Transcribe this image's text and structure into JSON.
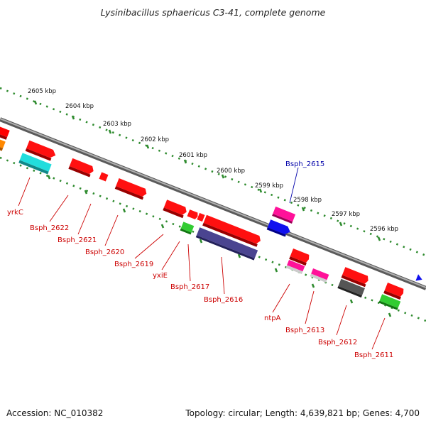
{
  "title": "Lysinibacillus sphaericus C3-41, complete genome",
  "footer": {
    "accession": "Accession: NC_010382",
    "summary": "Topology: circular; Length: 4,639,821 bp; Genes: 4,700"
  },
  "scale": {
    "unit": "kbp",
    "ticks": [
      {
        "kbp": 2605,
        "label": "2605 kbp"
      },
      {
        "kbp": 2604,
        "label": "2604 kbp"
      },
      {
        "kbp": 2603,
        "label": "2603 kbp"
      },
      {
        "kbp": 2602,
        "label": "2602 kbp"
      },
      {
        "kbp": 2601,
        "label": "2601 kbp"
      },
      {
        "kbp": 2600,
        "label": "2600 kbp"
      },
      {
        "kbp": 2599,
        "label": "2599 kbp"
      },
      {
        "kbp": 2598,
        "label": "2598 kbp"
      },
      {
        "kbp": 2597,
        "label": "2597 kbp"
      },
      {
        "kbp": 2596,
        "label": "2596 kbp"
      }
    ]
  },
  "colors": {
    "backbone": "#8a8a8a",
    "ruler": "#2e8b2e",
    "label_red": "#cc0000",
    "label_blue": "#0000aa"
  },
  "genes": [
    {
      "label": "Bsph_2615",
      "color": "#1010ee",
      "label_color": "#0000aa"
    },
    {
      "label": "yrkC",
      "color": "#ff0000",
      "label_color": "#cc0000"
    },
    {
      "label": "Bsph_2622",
      "color": "#ff0000",
      "label_color": "#cc0000"
    },
    {
      "label": "Bsph_2621",
      "color": "#ff0000",
      "label_color": "#cc0000"
    },
    {
      "label": "Bsph_2620",
      "color": "#ff0000",
      "label_color": "#cc0000"
    },
    {
      "label": "Bsph_2619",
      "color": "#ff0000",
      "label_color": "#cc0000"
    },
    {
      "label": "yxiE",
      "color": "#22bb22",
      "label_color": "#cc0000"
    },
    {
      "label": "Bsph_2617",
      "color": "#ff0000",
      "label_color": "#cc0000"
    },
    {
      "label": "Bsph_2616",
      "color": "#4a4490",
      "label_color": "#cc0000"
    },
    {
      "label": "ntpA",
      "color": "#ff1199",
      "label_color": "#cc0000"
    },
    {
      "label": "Bsph_2613",
      "color": "#ff1199",
      "label_color": "#cc0000"
    },
    {
      "label": "Bsph_2612",
      "color": "#555555",
      "label_color": "#cc0000"
    },
    {
      "label": "Bsph_2611",
      "color": "#22bb22",
      "label_color": "#cc0000"
    }
  ]
}
